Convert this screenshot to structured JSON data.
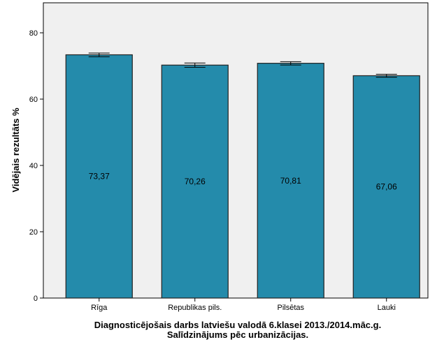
{
  "chart_data": {
    "type": "bar",
    "categories": [
      "Rīga",
      "Republikas pils.",
      "Pilsētas",
      "Lauki"
    ],
    "values": [
      73.37,
      70.26,
      70.81,
      67.06
    ],
    "data_labels": [
      "73,37",
      "70,26",
      "70,81",
      "67,06"
    ],
    "error_bars": [
      [
        72.8,
        73.9
      ],
      [
        69.6,
        70.9
      ],
      [
        70.3,
        71.3
      ],
      [
        66.6,
        67.5
      ]
    ],
    "ylabel": "Vidējais rezultāts %",
    "xlabel_line1": "Diagnosticējošais darbs latviešu valodā 6.klasei 2013./2014.māc.g.",
    "xlabel_line2": "Salīdzinājums pēc urbanizācijas.",
    "ylim": [
      0,
      88
    ],
    "yticks": [
      0,
      20,
      40,
      60,
      80
    ],
    "grid": false,
    "colors": {
      "bar": "#248bab",
      "plot_bg": "#f0f0f0"
    }
  }
}
